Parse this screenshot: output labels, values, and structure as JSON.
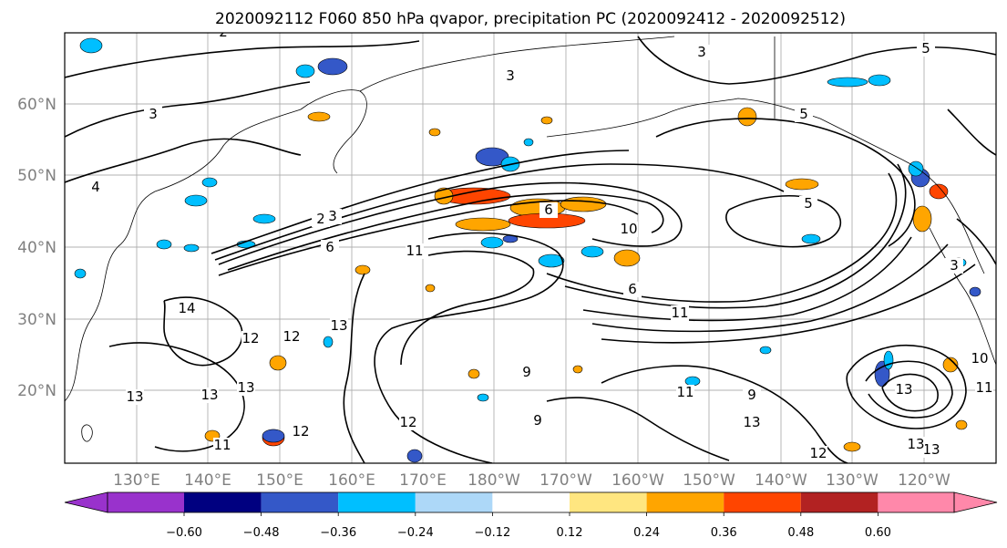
{
  "title": "2020092112 F060 850 hPa qvapor, precipitation PC (2020092412 - 2020092512)",
  "map": {
    "lat_labels": [
      "60°N",
      "50°N",
      "40°N",
      "30°N",
      "20°N"
    ],
    "lon_labels": [
      "130°E",
      "140°E",
      "150°E",
      "160°E",
      "170°E",
      "180°W",
      "170°W",
      "160°W",
      "150°W",
      "140°W",
      "130°W",
      "120°W"
    ],
    "contour_labels": [
      "2",
      "2",
      "3",
      "3",
      "3",
      "3",
      "3",
      "4",
      "5",
      "5",
      "5",
      "6",
      "6",
      "6",
      "10",
      "11",
      "12",
      "12",
      "12",
      "12",
      "13",
      "13",
      "13",
      "13",
      "14",
      "11",
      "9",
      "9",
      "9",
      "13",
      "11",
      "13",
      "12",
      "13",
      "11",
      "10",
      "11",
      "13"
    ],
    "grid": true,
    "fill_colors": {
      "purple": "#9932cc",
      "navy": "#000080",
      "blue": "#3458c8",
      "cyan": "#00bfff",
      "lightblue": "#add8f8",
      "yellow": "#ffe680",
      "orange": "#ffa500",
      "orangered": "#ff4500",
      "darkred": "#b22222",
      "pink": "#ff88aa"
    }
  },
  "colorbar": {
    "ticks": [
      "−0.60",
      "−0.48",
      "−0.36",
      "−0.24",
      "−0.12",
      "0.12",
      "0.24",
      "0.36",
      "0.48",
      "0.60"
    ],
    "colors": [
      "#9932cc",
      "#000080",
      "#3458c8",
      "#00bfff",
      "#add8f8",
      "#ffffff",
      "#ffe680",
      "#ffa500",
      "#ff4500",
      "#b22222",
      "#ff88aa"
    ]
  }
}
